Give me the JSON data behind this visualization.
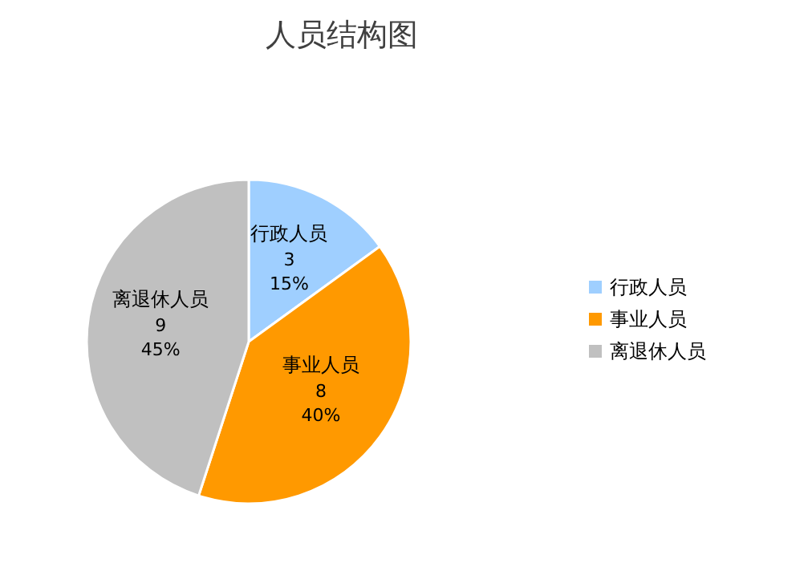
{
  "chart_data": {
    "type": "pie",
    "title": "人员结构图",
    "categories": [
      "行政人员",
      "事业人员",
      "离退休人员"
    ],
    "values": [
      3,
      8,
      9
    ],
    "annotations": [
      "15%",
      "40%",
      "45%"
    ],
    "colors": [
      "#9fcfff",
      "#ff9900",
      "#c0c0c0"
    ],
    "data_labels": true,
    "legend": "right"
  }
}
